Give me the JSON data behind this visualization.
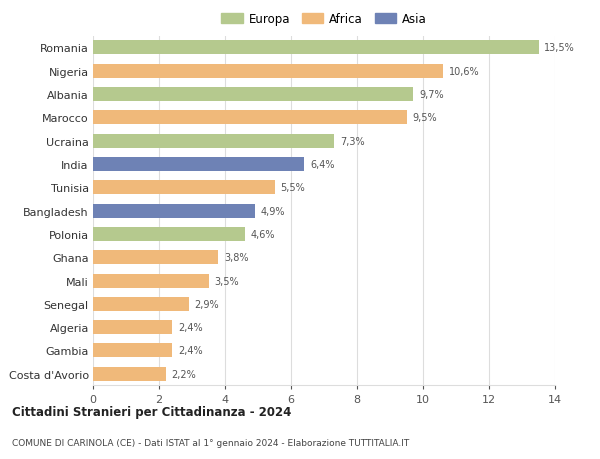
{
  "countries": [
    "Romania",
    "Nigeria",
    "Albania",
    "Marocco",
    "Ucraina",
    "India",
    "Tunisia",
    "Bangladesh",
    "Polonia",
    "Ghana",
    "Mali",
    "Senegal",
    "Algeria",
    "Gambia",
    "Costa d'Avorio"
  ],
  "values": [
    13.5,
    10.6,
    9.7,
    9.5,
    7.3,
    6.4,
    5.5,
    4.9,
    4.6,
    3.8,
    3.5,
    2.9,
    2.4,
    2.4,
    2.2
  ],
  "labels": [
    "13,5%",
    "10,6%",
    "9,7%",
    "9,5%",
    "7,3%",
    "6,4%",
    "5,5%",
    "4,9%",
    "4,6%",
    "3,8%",
    "3,5%",
    "2,9%",
    "2,4%",
    "2,4%",
    "2,2%"
  ],
  "continents": [
    "Europa",
    "Africa",
    "Europa",
    "Africa",
    "Europa",
    "Asia",
    "Africa",
    "Asia",
    "Europa",
    "Africa",
    "Africa",
    "Africa",
    "Africa",
    "Africa",
    "Africa"
  ],
  "colors": {
    "Europa": "#b5c98e",
    "Africa": "#f0b97a",
    "Asia": "#6e82b5"
  },
  "xlim": [
    0,
    14
  ],
  "xticks": [
    0,
    2,
    4,
    6,
    8,
    10,
    12,
    14
  ],
  "title1": "Cittadini Stranieri per Cittadinanza - 2024",
  "title2": "COMUNE DI CARINOLA (CE) - Dati ISTAT al 1° gennaio 2024 - Elaborazione TUTTITALIA.IT",
  "bg_color": "#ffffff",
  "grid_color": "#dddddd",
  "bar_height": 0.6
}
